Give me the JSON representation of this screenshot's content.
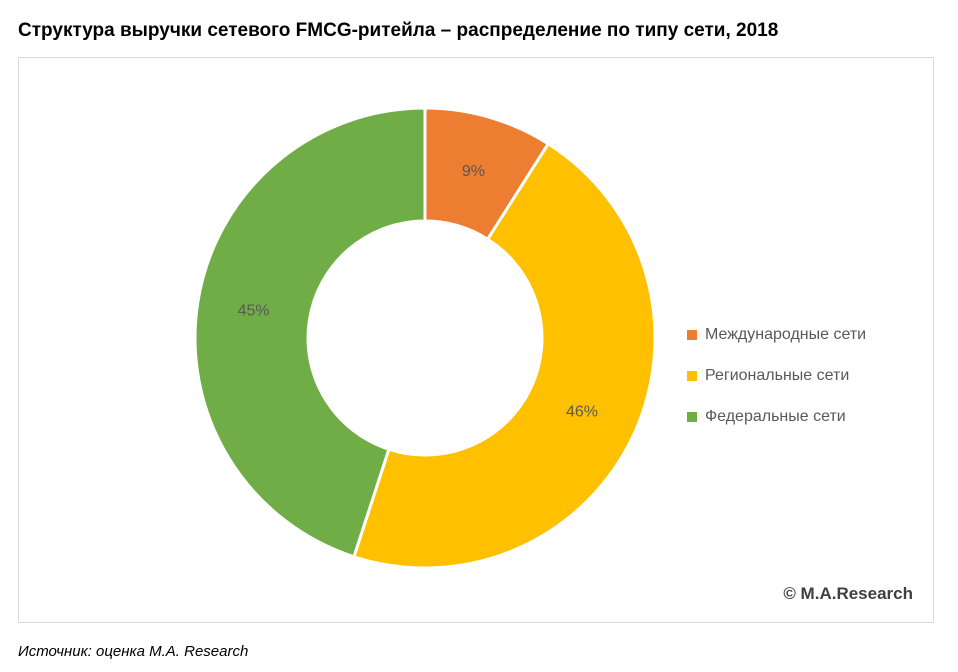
{
  "title": "Структура выручки сетевого FMCG-ритейла – распределение по типу сети, 2018",
  "watermark": "© M.A.Research",
  "source": "Источник: оценка M.A. Research",
  "chart_data": {
    "type": "pie",
    "subtype": "donut",
    "title": "Структура выручки сетевого FMCG-ритейла – распределение по типу сети, 2018",
    "legend_position": "right",
    "slices": [
      {
        "name": "Международные сети",
        "value": 9,
        "label": "9%",
        "color": "#ED7D31"
      },
      {
        "name": "Региональные сети",
        "value": 46,
        "label": "46%",
        "color": "#FFC000"
      },
      {
        "name": "Федеральные сети",
        "value": 45,
        "label": "45%",
        "color": "#70AD47"
      }
    ]
  }
}
